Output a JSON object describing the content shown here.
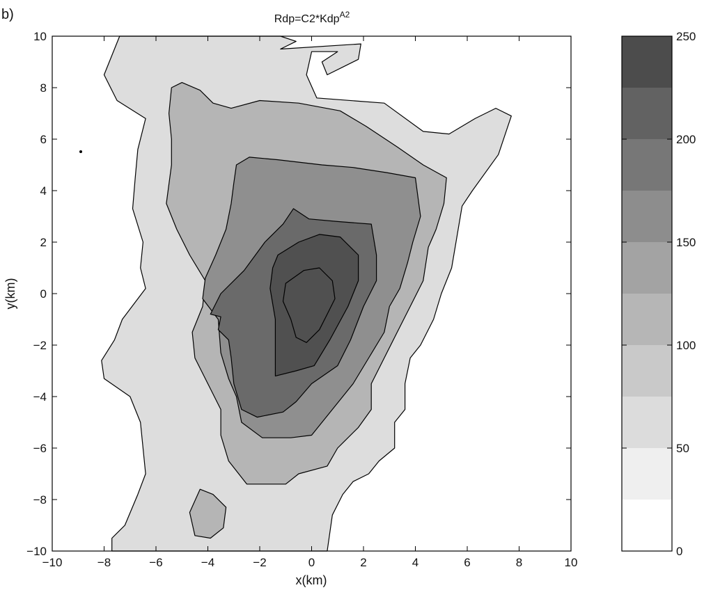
{
  "panel_label": "b)",
  "chart_data": {
    "type": "heatmap",
    "subtype": "filled-contour",
    "title": "Rdp=C2*Kdp",
    "title_superscript": "A2",
    "xlabel": "x(km)",
    "ylabel": "y(km)",
    "xlim": [
      -10,
      10
    ],
    "ylim": [
      -10,
      10
    ],
    "xticks": [
      -10,
      -8,
      -6,
      -4,
      -2,
      0,
      2,
      4,
      6,
      8,
      10
    ],
    "yticks": [
      -10,
      -8,
      -6,
      -4,
      -2,
      0,
      2,
      4,
      6,
      8,
      10
    ],
    "grid": false,
    "colorbar": {
      "placement": "right",
      "range": [
        0,
        250
      ],
      "ticks": [
        0,
        50,
        100,
        150,
        200,
        250
      ],
      "levels": [
        0,
        25,
        50,
        75,
        100,
        125,
        150,
        175,
        200,
        225,
        250
      ],
      "colors": [
        "#ffffff",
        "#efefef",
        "#dcdcdc",
        "#c9c9c9",
        "#b6b6b6",
        "#a3a3a3",
        "#8d8d8d",
        "#777777",
        "#626262",
        "#4c4c4c"
      ]
    },
    "contour_colors": [
      "#dddddd",
      "#b5b5b5",
      "#8f8f8f",
      "#6a6a6a",
      "#505050"
    ],
    "contours": [
      {
        "level": 25,
        "points": [
          [
            -7.4,
            10
          ],
          [
            -1.2,
            10
          ],
          [
            -0.6,
            9.8
          ],
          [
            -1.2,
            9.5
          ],
          [
            1.9,
            9.7
          ],
          [
            1.8,
            9.1
          ],
          [
            1.2,
            8.8
          ],
          [
            0.6,
            8.5
          ],
          [
            0.4,
            9
          ],
          [
            1,
            9.4
          ],
          [
            0,
            9.4
          ],
          [
            -0.2,
            8.5
          ],
          [
            0.2,
            7.6
          ],
          [
            2.8,
            7.4
          ],
          [
            4.3,
            6.3
          ],
          [
            5.3,
            6.2
          ],
          [
            6.3,
            6.8
          ],
          [
            7.1,
            7.2
          ],
          [
            7.7,
            6.9
          ],
          [
            7.2,
            5.4
          ],
          [
            6.2,
            4
          ],
          [
            5.8,
            3.4
          ],
          [
            5.6,
            2.2
          ],
          [
            5.4,
            1
          ],
          [
            5,
            0
          ],
          [
            4.7,
            -1
          ],
          [
            4.2,
            -2
          ],
          [
            3.8,
            -2.5
          ],
          [
            3.6,
            -3.5
          ],
          [
            3.6,
            -4.5
          ],
          [
            3.2,
            -5
          ],
          [
            3.2,
            -6
          ],
          [
            2.6,
            -6.5
          ],
          [
            2.2,
            -7
          ],
          [
            1.6,
            -7.3
          ],
          [
            1.2,
            -7.8
          ],
          [
            0.8,
            -8.6
          ],
          [
            0.6,
            -10
          ],
          [
            -7.7,
            -10
          ],
          [
            -7.7,
            -9.5
          ],
          [
            -7.2,
            -9
          ],
          [
            -6.7,
            -7.8
          ],
          [
            -6.4,
            -7
          ],
          [
            -6.5,
            -6
          ],
          [
            -6.6,
            -5
          ],
          [
            -7,
            -4
          ],
          [
            -8,
            -3.3
          ],
          [
            -8.1,
            -2.6
          ],
          [
            -7.6,
            -1.8
          ],
          [
            -7.3,
            -1
          ],
          [
            -6.4,
            0.2
          ],
          [
            -6.6,
            1
          ],
          [
            -6.5,
            2
          ],
          [
            -6.9,
            3.3
          ],
          [
            -6.8,
            4.5
          ],
          [
            -6.7,
            5.6
          ],
          [
            -6.4,
            6.8
          ],
          [
            -7.5,
            7.5
          ],
          [
            -8,
            8.5
          ],
          [
            -7.4,
            10
          ]
        ]
      },
      {
        "level": 50,
        "points": [
          [
            -4.3,
            -7.6
          ],
          [
            -3.8,
            -7.8
          ],
          [
            -3.3,
            -8.3
          ],
          [
            -3.4,
            -9.1
          ],
          [
            -3.9,
            -9.5
          ],
          [
            -4.5,
            -9.4
          ],
          [
            -4.7,
            -8.5
          ],
          [
            -4.3,
            -7.6
          ]
        ]
      },
      {
        "level": 50,
        "points": [
          [
            -5.4,
            8
          ],
          [
            -5,
            8.2
          ],
          [
            -4.3,
            7.9
          ],
          [
            -3.8,
            7.4
          ],
          [
            -3.1,
            7.2
          ],
          [
            -2,
            7.5
          ],
          [
            -0.5,
            7.4
          ],
          [
            1.1,
            7.1
          ],
          [
            2.1,
            6.5
          ],
          [
            3.3,
            5.7
          ],
          [
            4.3,
            5
          ],
          [
            5.2,
            4.5
          ],
          [
            5.1,
            3.5
          ],
          [
            4.8,
            2.5
          ],
          [
            4.5,
            1.8
          ],
          [
            4.3,
            0.5
          ],
          [
            3.8,
            -0.5
          ],
          [
            3.3,
            -1.5
          ],
          [
            2.8,
            -2.5
          ],
          [
            2.3,
            -3.5
          ],
          [
            2.3,
            -4.5
          ],
          [
            1.8,
            -5.2
          ],
          [
            1,
            -6
          ],
          [
            0.6,
            -6.7
          ],
          [
            -0.5,
            -7
          ],
          [
            -1,
            -7.4
          ],
          [
            -2.5,
            -7.4
          ],
          [
            -3.2,
            -6.5
          ],
          [
            -3.5,
            -5.5
          ],
          [
            -3.5,
            -4.5
          ],
          [
            -4,
            -3.5
          ],
          [
            -4.5,
            -2.5
          ],
          [
            -4.6,
            -1.5
          ],
          [
            -4.2,
            -0.5
          ],
          [
            -4.1,
            0.5
          ],
          [
            -4.7,
            1.5
          ],
          [
            -5.2,
            2.5
          ],
          [
            -5.6,
            3.5
          ],
          [
            -5.4,
            5
          ],
          [
            -5.4,
            6
          ],
          [
            -5.5,
            7
          ],
          [
            -5.4,
            8
          ]
        ]
      },
      {
        "level": 75,
        "points": [
          [
            -2.9,
            5
          ],
          [
            -2.4,
            5.3
          ],
          [
            -1.3,
            5.2
          ],
          [
            0.4,
            5
          ],
          [
            1.6,
            4.9
          ],
          [
            2.9,
            4.7
          ],
          [
            4,
            4.5
          ],
          [
            4.2,
            3
          ],
          [
            3.9,
            2
          ],
          [
            3.7,
            1.2
          ],
          [
            3.4,
            0.2
          ],
          [
            3,
            -0.5
          ],
          [
            2.8,
            -1.5
          ],
          [
            2.2,
            -2.5
          ],
          [
            1.6,
            -3.5
          ],
          [
            0.8,
            -4.5
          ],
          [
            0,
            -5.5
          ],
          [
            -0.8,
            -5.6
          ],
          [
            -1.9,
            -5.6
          ],
          [
            -2.7,
            -5
          ],
          [
            -2.9,
            -4
          ],
          [
            -3.2,
            -3.3
          ],
          [
            -3.5,
            -2.3
          ],
          [
            -3.6,
            -1
          ],
          [
            -4.2,
            -0.2
          ],
          [
            -4.1,
            0.6
          ],
          [
            -3.7,
            1.5
          ],
          [
            -3.3,
            2.5
          ],
          [
            -3.1,
            3.5
          ],
          [
            -3,
            4.3
          ],
          [
            -2.9,
            5
          ]
        ]
      },
      {
        "level": 100,
        "points": [
          [
            -3.9,
            -0.8
          ],
          [
            -3.5,
            0
          ],
          [
            -2.6,
            0.9
          ],
          [
            -1.8,
            2
          ],
          [
            -1.1,
            2.7
          ],
          [
            -0.7,
            3.3
          ],
          [
            -0.1,
            2.9
          ],
          [
            1,
            2.8
          ],
          [
            2.3,
            2.7
          ],
          [
            2.5,
            1.5
          ],
          [
            2.5,
            0.5
          ],
          [
            2,
            -0.5
          ],
          [
            1.5,
            -1.8
          ],
          [
            1,
            -2.8
          ],
          [
            0,
            -3.5
          ],
          [
            -0.6,
            -4.2
          ],
          [
            -1.1,
            -4.6
          ],
          [
            -2.1,
            -4.8
          ],
          [
            -2.7,
            -4.5
          ],
          [
            -3,
            -3.5
          ],
          [
            -3.1,
            -2.5
          ],
          [
            -3.2,
            -1.8
          ],
          [
            -3.6,
            -1.4
          ],
          [
            -3.5,
            -0.9
          ],
          [
            -3.9,
            -0.8
          ]
        ]
      },
      {
        "level": 125,
        "points": [
          [
            -1.3,
            1.5
          ],
          [
            -0.5,
            2
          ],
          [
            0.3,
            2.3
          ],
          [
            1.1,
            2.2
          ],
          [
            1.8,
            1.5
          ],
          [
            1.8,
            0.5
          ],
          [
            1.4,
            -0.5
          ],
          [
            0.7,
            -1.8
          ],
          [
            0.1,
            -2.8
          ],
          [
            -0.6,
            -3
          ],
          [
            -1.4,
            -3.2
          ],
          [
            -1.4,
            -2
          ],
          [
            -1.4,
            -1
          ],
          [
            -1.6,
            0.2
          ],
          [
            -1.5,
            1
          ],
          [
            -1.3,
            1.5
          ]
        ]
      },
      {
        "level": 150,
        "points": [
          [
            -1,
            0.4
          ],
          [
            -0.3,
            0.9
          ],
          [
            0.3,
            1
          ],
          [
            0.8,
            0.5
          ],
          [
            0.9,
            -0.2
          ],
          [
            0.6,
            -0.8
          ],
          [
            0.3,
            -1.4
          ],
          [
            -0.2,
            -1.9
          ],
          [
            -0.6,
            -1.7
          ],
          [
            -0.8,
            -1
          ],
          [
            -1.1,
            -0.3
          ],
          [
            -1,
            0.4
          ]
        ]
      }
    ]
  }
}
